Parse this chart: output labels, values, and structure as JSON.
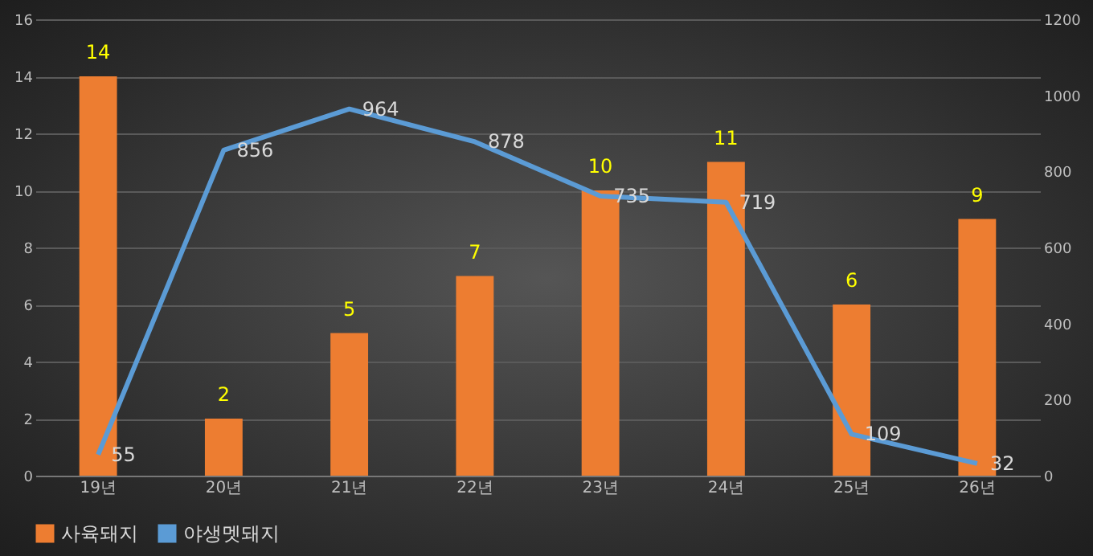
{
  "chart_data": {
    "type": "bar",
    "categories": [
      "19년",
      "20년",
      "21년",
      "22년",
      "23년",
      "24년",
      "25년",
      "26년"
    ],
    "series": [
      {
        "name": "사육돼지",
        "color": "#ed7d31",
        "values": [
          14,
          2,
          5,
          7,
          10,
          11,
          6,
          9
        ]
      },
      {
        "name": "야생멧돼지",
        "type": "line",
        "axis": "y2",
        "color": "#5b9bd5",
        "values": [
          55,
          856,
          964,
          878,
          735,
          719,
          109,
          32
        ]
      }
    ],
    "ylim": [
      0,
      16
    ],
    "yticks": [
      0,
      2,
      4,
      6,
      8,
      10,
      12,
      14,
      16
    ],
    "y2lim": [
      0,
      1200
    ],
    "y2ticks": [
      0,
      200,
      400,
      600,
      800,
      1000,
      1200
    ],
    "grid": "y",
    "legend": "bottom",
    "data_labels": true,
    "marker": "none",
    "line_style": "solid"
  }
}
